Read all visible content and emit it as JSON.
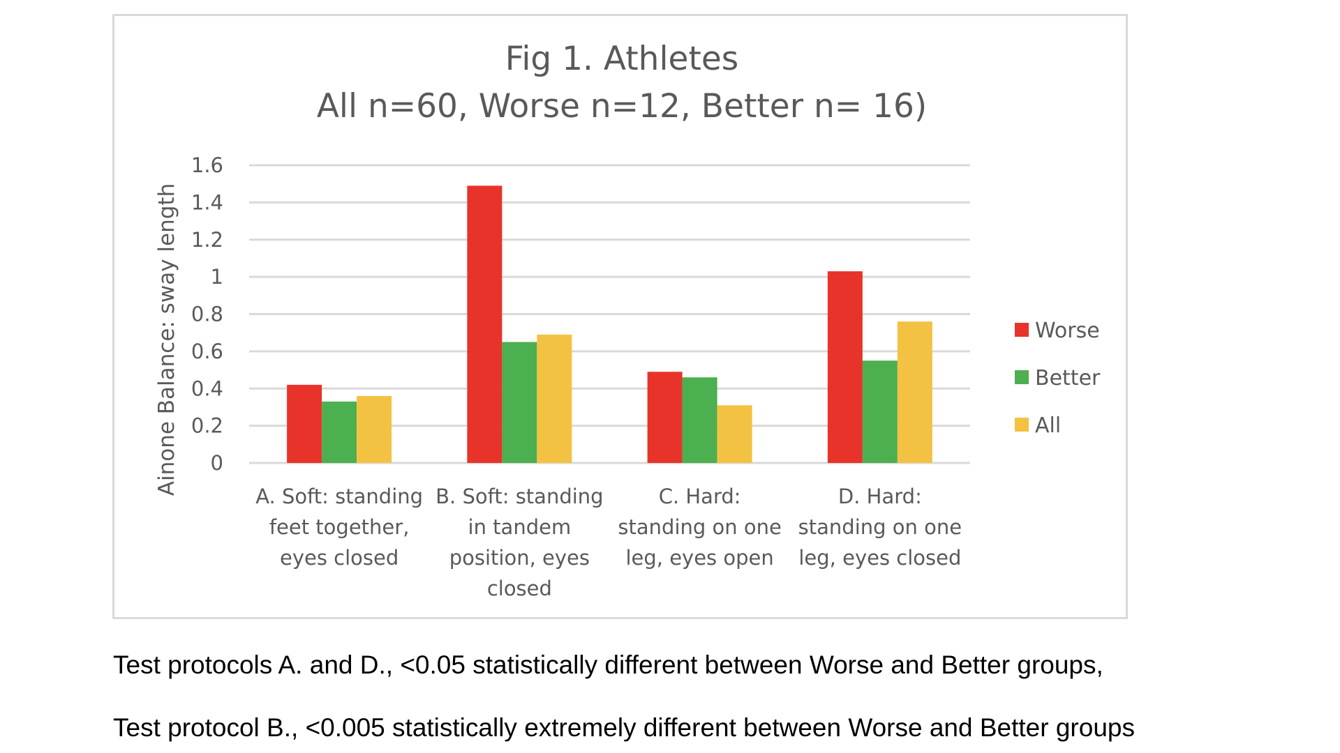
{
  "chart_data": {
    "type": "bar",
    "title_lines": [
      "Fig 1. Athletes",
      "All n=60, Worse n=12, Better n= 16)"
    ],
    "ylabel": "Ainone Balance: sway length",
    "xlabel": "",
    "ylim": [
      0,
      1.6
    ],
    "yticks": [
      "0",
      "0.2",
      "0.4",
      "0.6",
      "0.8",
      "1",
      "1.2",
      "1.4",
      "1.6"
    ],
    "grid": true,
    "legend_position": "right",
    "categories": [
      [
        "A. Soft: standing",
        "feet together,",
        "eyes closed"
      ],
      [
        "B. Soft: standing",
        "in tandem",
        "position, eyes",
        "closed"
      ],
      [
        "C. Hard:",
        "standing on one",
        "leg, eyes open"
      ],
      [
        "D. Hard:",
        "standing on one",
        "leg, eyes closed"
      ]
    ],
    "series": [
      {
        "name": "Worse",
        "color": "#e8332a",
        "values": [
          0.42,
          1.49,
          0.49,
          1.03
        ]
      },
      {
        "name": "Better",
        "color": "#4caf50",
        "values": [
          0.33,
          0.65,
          0.46,
          0.55
        ]
      },
      {
        "name": "All",
        "color": "#f4c242",
        "values": [
          0.36,
          0.69,
          0.31,
          0.76
        ]
      }
    ]
  },
  "notes": {
    "line1": "Test protocols A. and D., <0.05 statistically different between Worse and Better groups,",
    "line2": "Test protocol B., <0.005 statistically extremely different between Worse and Better groups"
  }
}
